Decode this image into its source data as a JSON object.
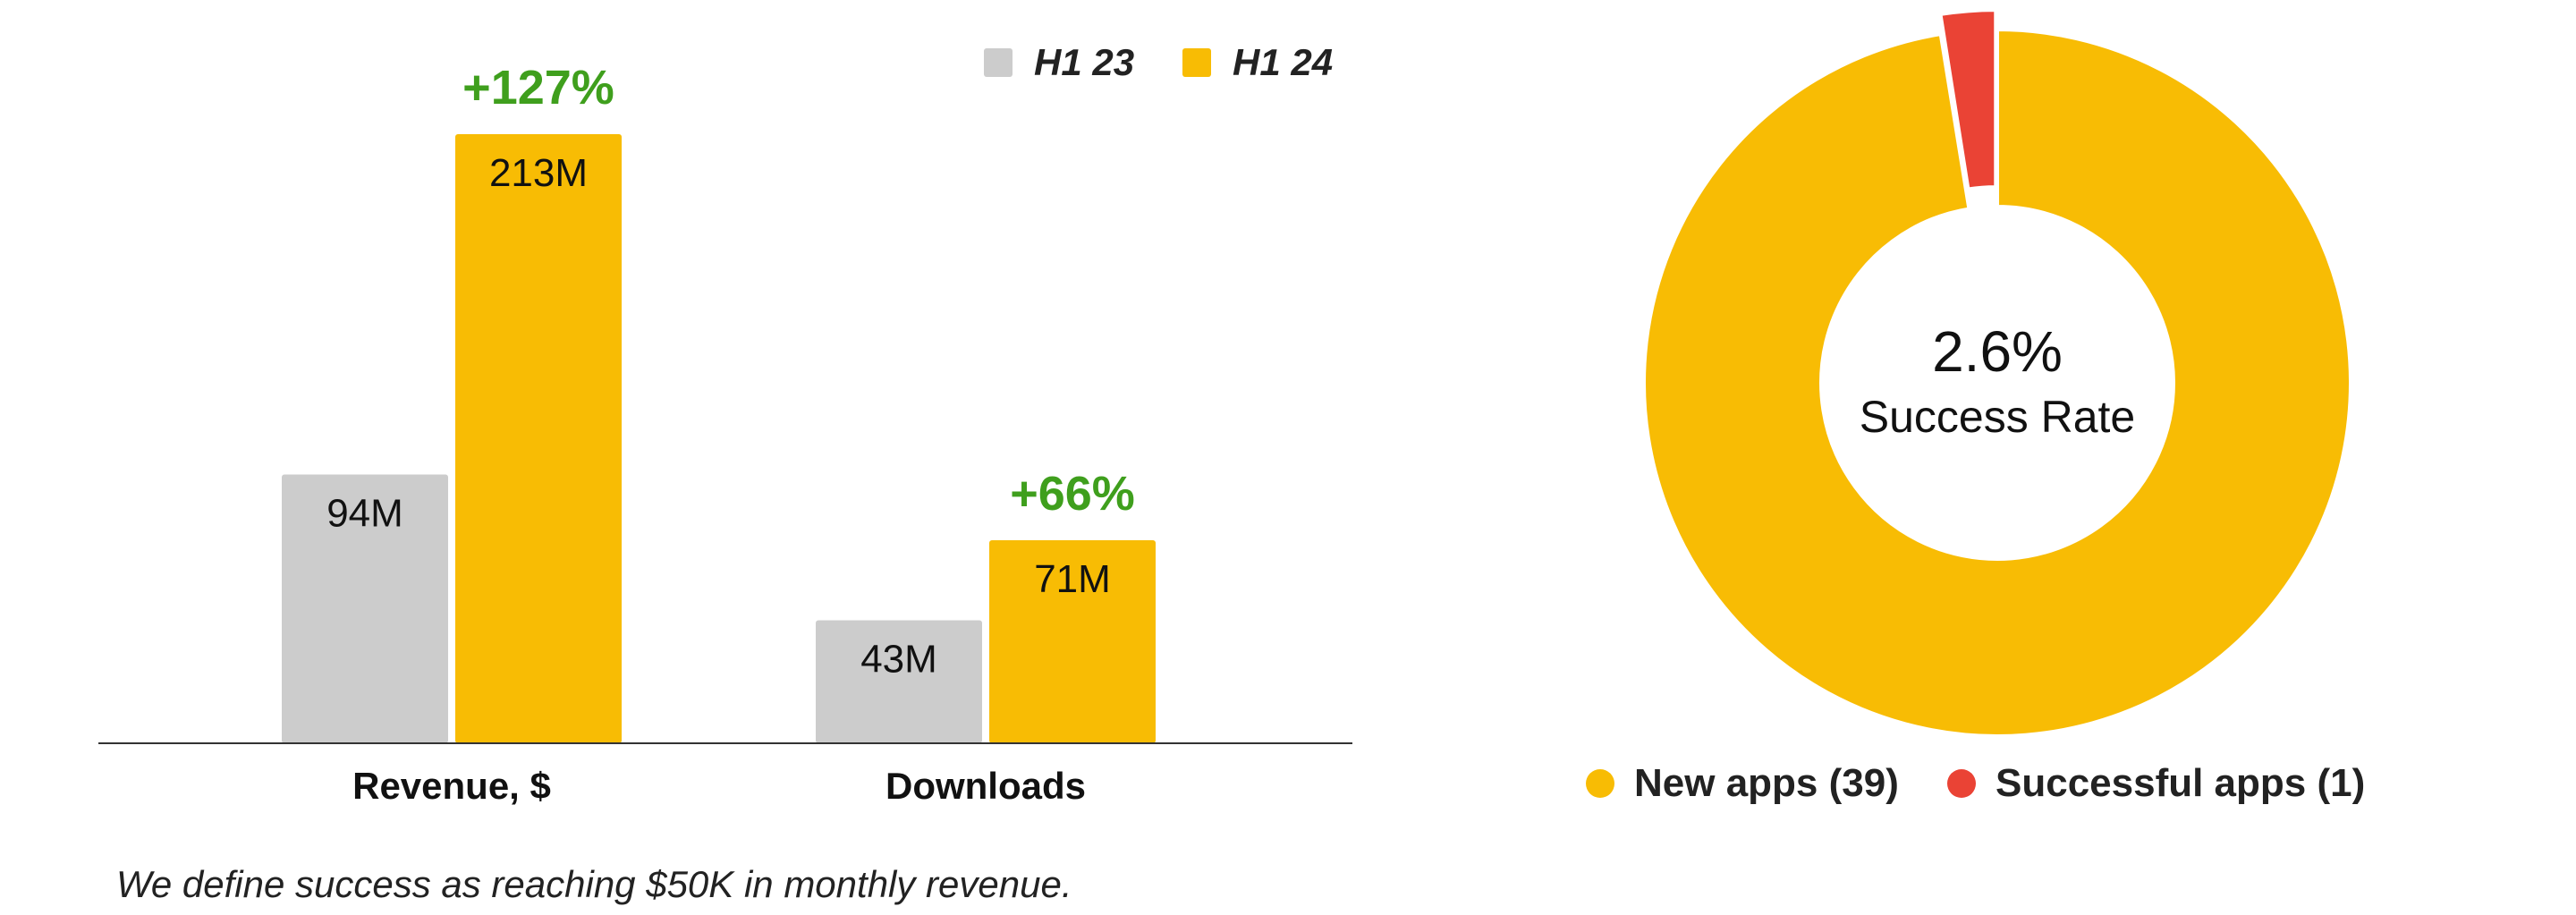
{
  "chart_data": [
    {
      "type": "bar",
      "categories": [
        "Revenue, $",
        "Downloads"
      ],
      "series": [
        {
          "name": "H1 23",
          "values": [
            94,
            43
          ],
          "labels": [
            "94M",
            "43M"
          ],
          "color": "#cccccc"
        },
        {
          "name": "H1 24",
          "values": [
            213,
            71
          ],
          "labels": [
            "213M",
            "71M"
          ],
          "color": "#f8bc04"
        }
      ],
      "growth_labels": [
        "+127%",
        "+66%"
      ],
      "growth_color": "#3f9f1d",
      "ylim": [
        0,
        213
      ],
      "legend_position": "top-right",
      "grid": false
    },
    {
      "type": "pie",
      "donut": true,
      "slices": [
        {
          "name": "New apps (39)",
          "value": 39,
          "color": "#f8bc04"
        },
        {
          "name": "Successful apps (1)",
          "value": 1,
          "color": "#ea4335"
        }
      ],
      "center_value": "2.6%",
      "center_label": "Success Rate",
      "legend_position": "bottom"
    }
  ],
  "footnote": "We define success as reaching $50K in monthly revenue."
}
